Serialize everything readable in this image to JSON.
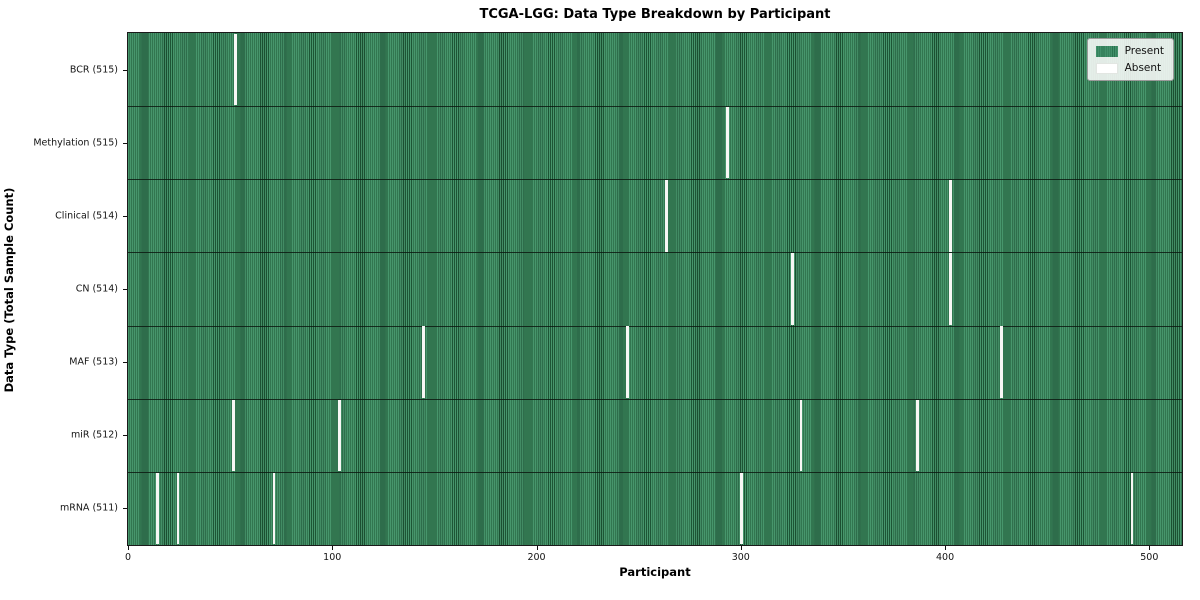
{
  "chart_data": {
    "type": "heatmap",
    "title": "TCGA-LGG: Data Type Breakdown by Participant",
    "xlabel": "Participant",
    "ylabel": "Data Type (Total Sample Count)",
    "x_ticks": [
      0,
      100,
      200,
      300,
      400,
      500
    ],
    "x_range": [
      0,
      516
    ],
    "total_participants": 516,
    "grid": false,
    "legend_position": "upper right",
    "legend": [
      {
        "label": "Present",
        "color": "#2e8b57"
      },
      {
        "label": "Absent",
        "color": "#ffffff"
      }
    ],
    "rows": [
      {
        "label": "BCR (515)",
        "data_type": "BCR",
        "present_count": 515,
        "absent_count": 1,
        "absent_participants": [
          52
        ]
      },
      {
        "label": "Methylation (515)",
        "data_type": "Methylation",
        "present_count": 515,
        "absent_count": 1,
        "absent_participants": [
          293
        ]
      },
      {
        "label": "Clinical (514)",
        "data_type": "Clinical",
        "present_count": 514,
        "absent_count": 2,
        "absent_participants": [
          263,
          402
        ]
      },
      {
        "label": "CN (514)",
        "data_type": "CN",
        "present_count": 514,
        "absent_count": 2,
        "absent_participants": [
          325,
          402
        ]
      },
      {
        "label": "MAF (513)",
        "data_type": "MAF",
        "present_count": 513,
        "absent_count": 3,
        "absent_participants": [
          144,
          244,
          427
        ]
      },
      {
        "label": "miR (512)",
        "data_type": "miR",
        "present_count": 512,
        "absent_count": 4,
        "absent_participants": [
          51,
          103,
          329,
          386
        ]
      },
      {
        "label": "mRNA (511)",
        "data_type": "mRNA",
        "present_count": 511,
        "absent_count": 5,
        "absent_participants": [
          14,
          24,
          71,
          300,
          491
        ]
      }
    ],
    "colors": {
      "present_light": "#47966c",
      "present_edge": "#1d5535",
      "absent": "#f7f7f5",
      "row_separator": "#14241a",
      "plot_border": "#1a1a1a"
    }
  }
}
